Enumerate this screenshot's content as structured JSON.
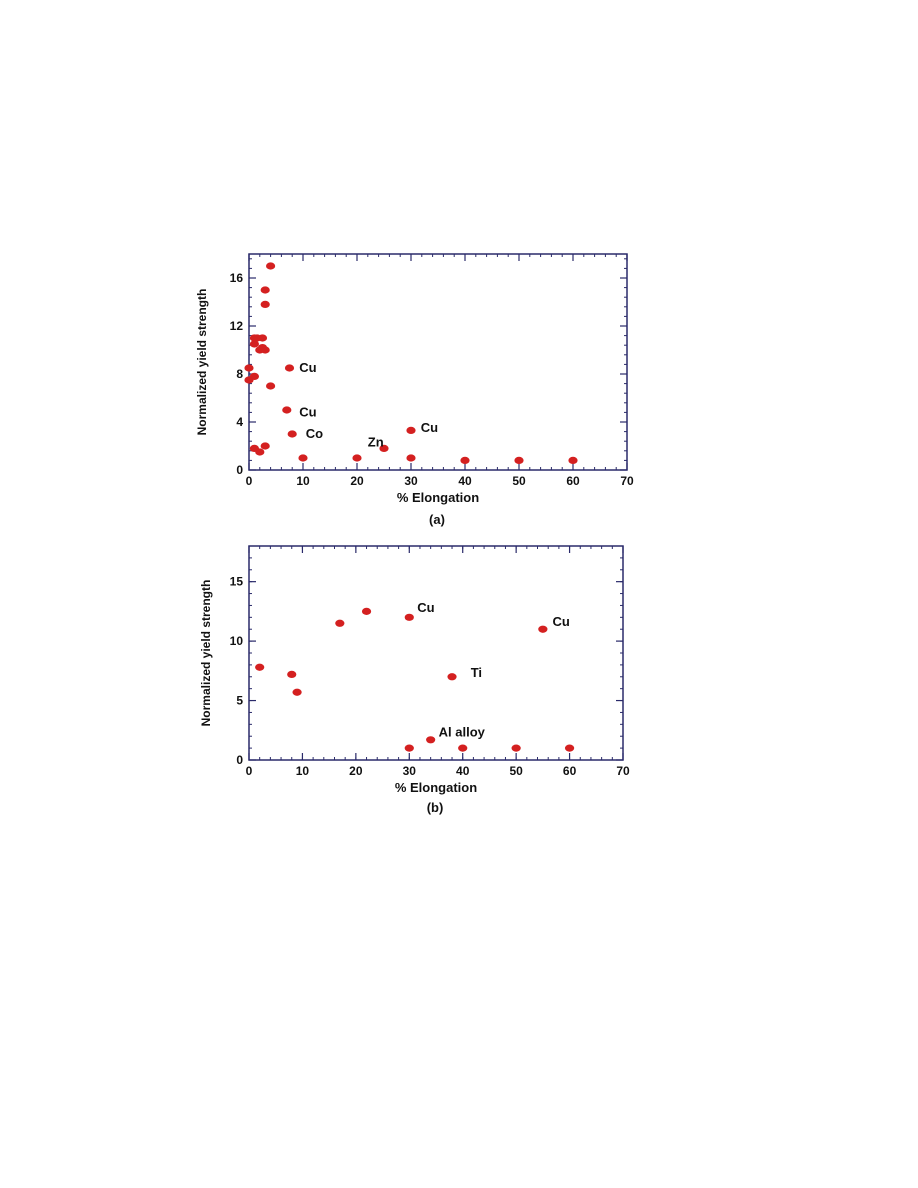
{
  "chart_data": [
    {
      "type": "scatter",
      "caption": "(a)",
      "xlabel": "% Elongation",
      "ylabel": "Normalized yield strength",
      "xlim": [
        0,
        70
      ],
      "ylim": [
        0,
        18
      ],
      "xticks": [
        0,
        10,
        20,
        30,
        40,
        50,
        60,
        70
      ],
      "yticks": [
        0,
        4,
        8,
        12,
        16
      ],
      "grid": false,
      "marker_color": "#d42020",
      "series": [
        {
          "points": [
            [
              4,
              17
            ],
            [
              3,
              15
            ],
            [
              3,
              13.8
            ],
            [
              1,
              11
            ],
            [
              1.5,
              11
            ],
            [
              2.5,
              11
            ],
            [
              1,
              10.5
            ],
            [
              2,
              10
            ],
            [
              3,
              10
            ],
            [
              2.5,
              10.2
            ],
            [
              0,
              8.5
            ],
            [
              0,
              7.5
            ],
            [
              1,
              7.8
            ],
            [
              7.5,
              8.5
            ],
            [
              4,
              7
            ],
            [
              7,
              5
            ],
            [
              8,
              3
            ],
            [
              1,
              1.8
            ],
            [
              2,
              1.5
            ],
            [
              3,
              2
            ],
            [
              10,
              1
            ],
            [
              20,
              1
            ],
            [
              25,
              1.8
            ],
            [
              30,
              3.3
            ],
            [
              30,
              1
            ],
            [
              40,
              0.8
            ],
            [
              50,
              0.8
            ],
            [
              60,
              0.8
            ]
          ]
        }
      ],
      "annotations": [
        {
          "text": "Cu",
          "x": 9.3,
          "y": 8.5
        },
        {
          "text": "Cu",
          "x": 9.3,
          "y": 4.8
        },
        {
          "text": "Co",
          "x": 10.5,
          "y": 3
        },
        {
          "text": "Zn",
          "x": 22,
          "y": 2.3
        },
        {
          "text": "Cu",
          "x": 31.8,
          "y": 3.5
        }
      ]
    },
    {
      "type": "scatter",
      "caption": "(b)",
      "xlabel": "% Elongation",
      "ylabel": "Normalized yield strength",
      "xlim": [
        0,
        70
      ],
      "ylim": [
        0,
        18
      ],
      "xticks": [
        0,
        10,
        20,
        30,
        40,
        50,
        60,
        70
      ],
      "yticks": [
        0,
        5,
        10,
        15
      ],
      "grid": false,
      "marker_color": "#d42020",
      "series": [
        {
          "points": [
            [
              2,
              7.8
            ],
            [
              8,
              7.2
            ],
            [
              9,
              5.7
            ],
            [
              17,
              11.5
            ],
            [
              22,
              12.5
            ],
            [
              30,
              12
            ],
            [
              30,
              1
            ],
            [
              34,
              1.7
            ],
            [
              40,
              1
            ],
            [
              38,
              7
            ],
            [
              50,
              1
            ],
            [
              55,
              11
            ],
            [
              60,
              1
            ]
          ]
        }
      ],
      "annotations": [
        {
          "text": "Cu",
          "x": 31.5,
          "y": 12.8
        },
        {
          "text": "Cu",
          "x": 56.8,
          "y": 11.6
        },
        {
          "text": "Ti",
          "x": 41.5,
          "y": 7.3
        },
        {
          "text": "Al  alloy",
          "x": 35.5,
          "y": 2.3
        }
      ]
    }
  ]
}
